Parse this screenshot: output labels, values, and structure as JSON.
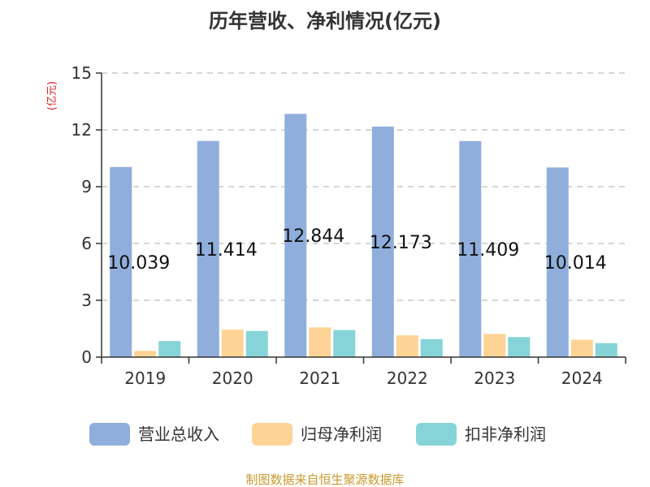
{
  "title": "历年营收、净利情况(亿元)",
  "unit_label": "(亿元)",
  "source": "制图数据来自恒生聚源数据库",
  "chart_data": {
    "type": "bar",
    "title": "历年营收、净利情况(亿元)",
    "xlabel": "",
    "ylabel": "(亿元)",
    "categories": [
      "2019",
      "2020",
      "2021",
      "2022",
      "2023",
      "2024"
    ],
    "yticks": [
      "0",
      "3",
      "6",
      "9",
      "12",
      "15"
    ],
    "ylim": [
      0,
      15
    ],
    "grid": true,
    "legend_position": "bottom",
    "series": [
      {
        "name": "营业总收入",
        "color": "#8faedc",
        "values": [
          10.039,
          11.414,
          12.844,
          12.173,
          11.409,
          10.014
        ],
        "labels": [
          "10.039",
          "11.414",
          "12.844",
          "12.173",
          "11.409",
          "10.014"
        ]
      },
      {
        "name": "归母净利润",
        "color": "#fdd495",
        "values": [
          0.33,
          1.45,
          1.57,
          1.15,
          1.22,
          0.92
        ]
      },
      {
        "name": "扣非净利润",
        "color": "#86d4d7",
        "values": [
          0.85,
          1.38,
          1.43,
          0.95,
          1.06,
          0.74
        ]
      }
    ]
  }
}
